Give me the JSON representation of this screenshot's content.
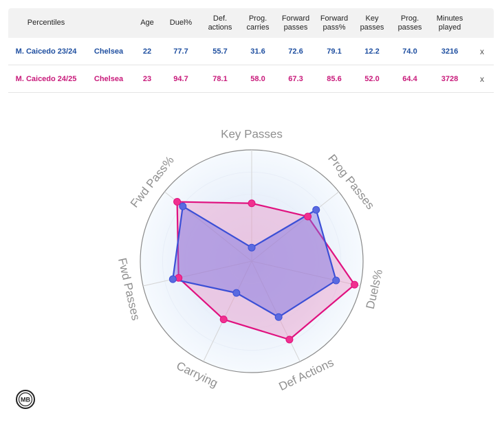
{
  "table": {
    "headers": [
      {
        "key": "label",
        "text": "Percentiles"
      },
      {
        "key": "team",
        "text": ""
      },
      {
        "key": "age",
        "text": "Age"
      },
      {
        "key": "duel",
        "text": "Duel%"
      },
      {
        "key": "def",
        "text": "Def.\nactions"
      },
      {
        "key": "progc",
        "text": "Prog.\ncarries"
      },
      {
        "key": "fwdp",
        "text": "Forward\npasses"
      },
      {
        "key": "fwdpp",
        "text": "Forward\npass%"
      },
      {
        "key": "key",
        "text": "Key\npasses"
      },
      {
        "key": "progp",
        "text": "Prog.\npasses"
      },
      {
        "key": "mins",
        "text": "Minutes\nplayed"
      },
      {
        "key": "x",
        "text": ""
      }
    ],
    "rows": [
      {
        "color": "#1f4fa0",
        "cells": [
          "M. Caicedo 23/24",
          "Chelsea",
          "22",
          "77.7",
          "55.7",
          "31.6",
          "72.6",
          "79.1",
          "12.2",
          "74.0",
          "3216",
          "x"
        ]
      },
      {
        "color": "#c8197a",
        "cells": [
          "M. Caicedo 24/25",
          "Chelsea",
          "23",
          "94.7",
          "78.1",
          "58.0",
          "67.3",
          "85.6",
          "52.0",
          "64.4",
          "3728",
          "x"
        ]
      }
    ]
  },
  "chart_data": {
    "type": "radar",
    "axes": [
      "Key Passes",
      "Prog Passes",
      "Duels%",
      "Def Actions",
      "Carrying",
      "Fwd Passes",
      "Fwd Pass%"
    ],
    "range": [
      0,
      100
    ],
    "series": [
      {
        "name": "M. Caicedo 23/24",
        "values": [
          12.2,
          74.0,
          77.7,
          55.7,
          31.6,
          72.6,
          79.1
        ],
        "color": "#3b4fd6",
        "fill": "rgba(120,110,225,0.45)",
        "marker": "#5a6ae0"
      },
      {
        "name": "M. Caicedo 24/25",
        "values": [
          52.0,
          64.4,
          94.7,
          78.1,
          58.0,
          67.3,
          85.6
        ],
        "color": "#e0117f",
        "fill": "rgba(236,130,185,0.35)",
        "marker": "#f0308f"
      }
    ]
  },
  "logo": {
    "text": "MB"
  }
}
